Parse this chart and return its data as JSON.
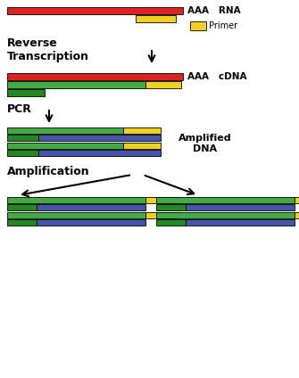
{
  "bg_color": "#ffffff",
  "colors": {
    "red": "#dd2222",
    "yellow": "#f0d020",
    "green_light": "#44aa44",
    "green_dark": "#228822",
    "blue": "#4455aa",
    "outline": "#000000"
  },
  "rna_label": "AAA   RNA",
  "cdna_label": "AAA   cDNA",
  "primer_label": "Primer",
  "reverse_transcription_label": "Reverse\nTranscription",
  "pcr_label": "PCR",
  "amplified_dna_label": "Amplified\nDNA",
  "amplification_label": "Amplification"
}
